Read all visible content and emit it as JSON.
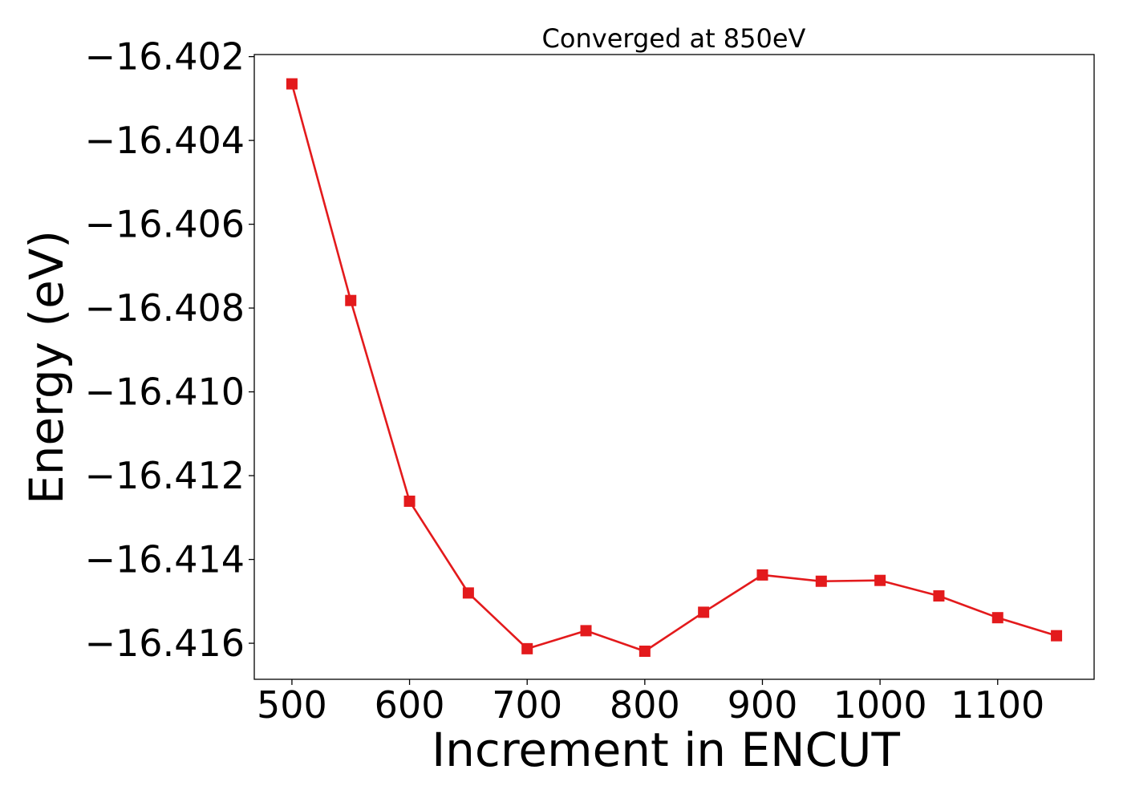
{
  "chart_data": {
    "type": "line",
    "title": "Converged at 850eV",
    "xlabel": "Increment in ENCUT",
    "ylabel": "Energy (eV)",
    "xlim": [
      468,
      1182
    ],
    "ylim": [
      -16.41686,
      -16.40195
    ],
    "x_ticks": [
      500,
      600,
      700,
      800,
      900,
      1000,
      1100
    ],
    "x_tick_labels": [
      "500",
      "600",
      "700",
      "800",
      "900",
      "1000",
      "1100"
    ],
    "y_ticks": [
      -16.402,
      -16.404,
      -16.406,
      -16.408,
      -16.41,
      -16.412,
      -16.414,
      -16.416
    ],
    "y_tick_labels": [
      "−16.402",
      "−16.404",
      "−16.406",
      "−16.408",
      "−16.410",
      "−16.412",
      "−16.414",
      "−16.416"
    ],
    "grid": false,
    "series": [
      {
        "color": "#e31a1c",
        "marker": "square",
        "x": [
          500,
          550,
          600,
          650,
          700,
          750,
          800,
          850,
          900,
          950,
          1000,
          1050,
          1100,
          1150
        ],
        "y": [
          -16.40265,
          -16.40782,
          -16.41261,
          -16.4148,
          -16.41613,
          -16.4157,
          -16.41619,
          -16.41526,
          -16.41437,
          -16.41452,
          -16.4145,
          -16.41487,
          -16.41539,
          -16.41582
        ]
      }
    ]
  }
}
